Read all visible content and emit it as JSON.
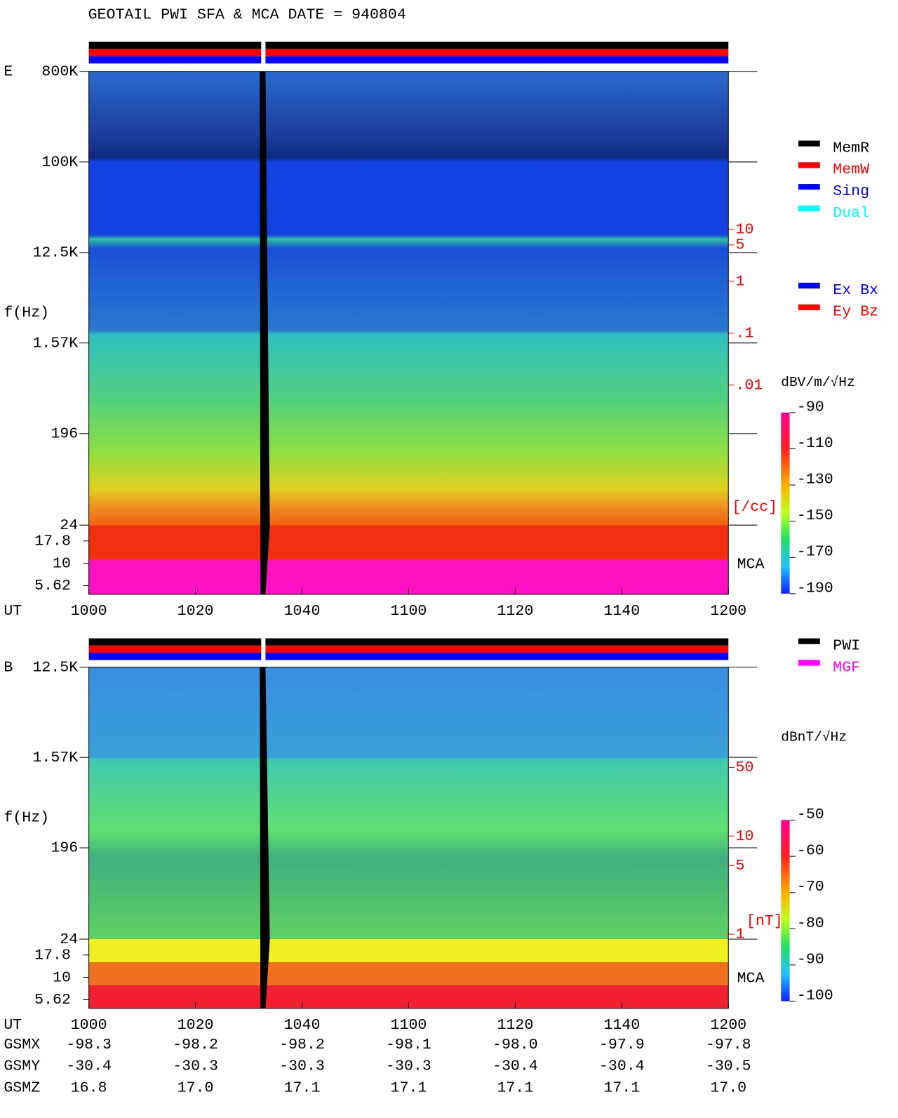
{
  "title": "GEOTAIL  PWI SFA & MCA   DATE = 940804",
  "chart_data": [
    {
      "type": "spectrogram",
      "panel": "E",
      "ylabel": "f(Hz)",
      "xlabel": "UT",
      "yscale": "log",
      "ylim": [
        24,
        800000
      ],
      "yticks": [
        {
          "value": 800000,
          "label": "800K"
        },
        {
          "value": 100000,
          "label": "100K"
        },
        {
          "value": 12500,
          "label": "12.5K"
        },
        {
          "value": 1570,
          "label": "1.57K"
        },
        196,
        24
      ],
      "mca_label": "MCA",
      "mca_yticks": [
        17.8,
        10,
        5.62
      ],
      "xlim": [
        600,
        720
      ],
      "xticks": [
        {
          "value": 600,
          "label": "1000"
        },
        {
          "value": 620,
          "label": "1020"
        },
        {
          "value": 640,
          "label": "1040"
        },
        {
          "value": 660,
          "label": "1100"
        },
        {
          "value": 680,
          "label": "1120"
        },
        {
          "value": 700,
          "label": "1140"
        },
        {
          "value": 720,
          "label": "1200"
        }
      ],
      "y2lim": [
        2e-05,
        11000
      ],
      "y2ticks": [
        10,
        5,
        1,
        {
          "value": 0.1,
          "label": ".1"
        },
        {
          "value": 0.01,
          "label": ".01"
        }
      ],
      "y2label": "[/cc]",
      "y2color": "#ff0000",
      "colorbar": {
        "label": "dBV/m/√Hz",
        "lim": [
          -190,
          -90
        ],
        "ticks": [
          -90,
          -110,
          -130,
          -150,
          -170,
          -190
        ]
      },
      "legend": [
        {
          "name": "MemR",
          "color": "#000000"
        },
        {
          "name": "MemW",
          "color": "#ff0000"
        },
        {
          "name": "Sing",
          "color": "#0000ff"
        },
        {
          "name": "Dual",
          "color": "#00ffff"
        }
      ],
      "legend2": [
        {
          "name": "Ex Bx",
          "color": "#0000ff"
        },
        {
          "name": "Ey Bz",
          "color": "#ff0000"
        }
      ]
    },
    {
      "type": "spectrogram",
      "panel": "B",
      "ylabel": "f(Hz)",
      "xlabel": "UT",
      "yscale": "log",
      "ylim": [
        24,
        12500
      ],
      "yticks": [
        {
          "value": 12500,
          "label": "12.5K"
        },
        {
          "value": 1570,
          "label": "1.57K"
        },
        196,
        24
      ],
      "mca_label": "MCA",
      "mca_yticks": [
        17.8,
        10,
        5.62
      ],
      "xlim": [
        600,
        720
      ],
      "xticks": [
        {
          "value": 600,
          "label": "1000"
        },
        {
          "value": 620,
          "label": "1020"
        },
        {
          "value": 640,
          "label": "1040"
        },
        {
          "value": 660,
          "label": "1100"
        },
        {
          "value": 680,
          "label": "1120"
        },
        {
          "value": 700,
          "label": "1140"
        },
        {
          "value": 720,
          "label": "1200"
        }
      ],
      "y2lim": [
        0.89,
        525
      ],
      "y2ticks": [
        50,
        10,
        5,
        1
      ],
      "y2label": "[nT]",
      "y2color": "#ff0000",
      "colorbar": {
        "label": "dBnT/√Hz",
        "lim": [
          -100,
          -50
        ],
        "ticks": [
          -50,
          -60,
          -70,
          -80,
          -90,
          -100
        ]
      },
      "legend": [
        {
          "name": "PWI",
          "color": "#000000"
        },
        {
          "name": "MGF",
          "color": "#ff00ff"
        }
      ]
    }
  ],
  "orbit": {
    "rows": [
      {
        "label": "GSMX",
        "values": [
          "-98.3",
          "-98.2",
          "-98.2",
          "-98.1",
          "-98.0",
          "-97.9",
          "-97.8"
        ]
      },
      {
        "label": "GSMY",
        "values": [
          "-30.4",
          "-30.3",
          "-30.3",
          "-30.3",
          "-30.4",
          "-30.4",
          "-30.5"
        ]
      },
      {
        "label": "GSMZ",
        "values": [
          "16.8",
          "17.0",
          "17.1",
          "17.1",
          "17.1",
          "17.1",
          "17.0"
        ]
      }
    ]
  }
}
